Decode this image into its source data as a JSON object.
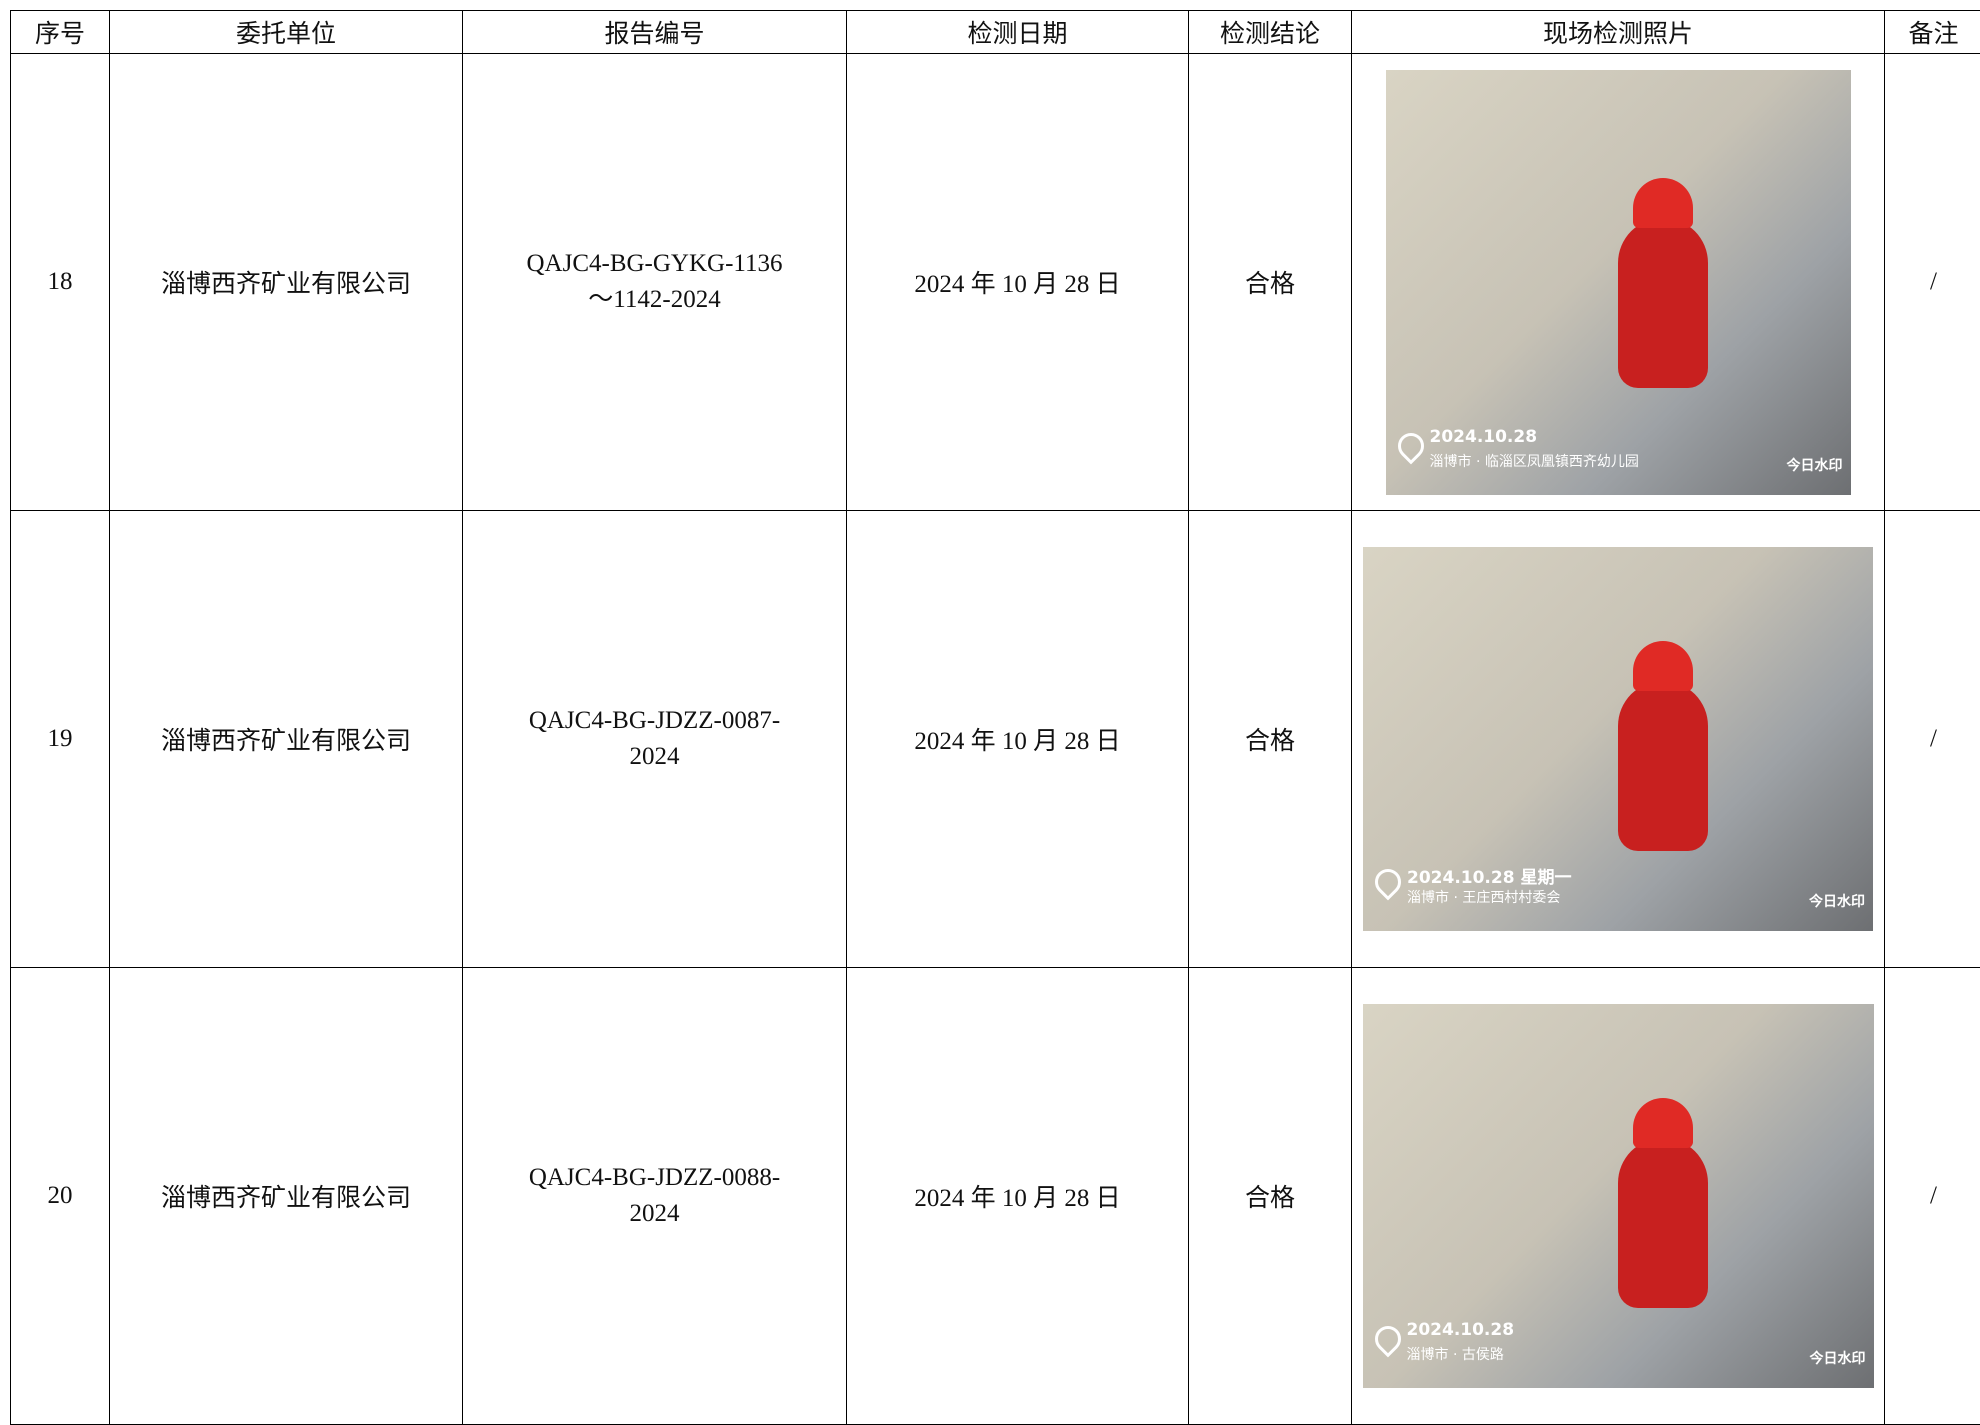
{
  "table": {
    "headers": [
      "序号",
      "委托单位",
      "报告编号",
      "检测日期",
      "检测结论",
      "现场检测照片",
      "备注"
    ],
    "rows": [
      {
        "no": "18",
        "client": "淄博西齐矿业有限公司",
        "report": "QAJC4-BG-GYKG-1136～1142-2024",
        "date": "2024 年 10 月 28 日",
        "conclusion": "合格",
        "photo": {
          "time": "2024.10.28",
          "location": "淄博市 · 临淄区凤凰镇西齐幼儿园",
          "brand": "今日水印"
        },
        "remark": "/"
      },
      {
        "no": "19",
        "client": "淄博西齐矿业有限公司",
        "report": "QAJC4-BG-JDZZ-0087-2024",
        "date": "2024 年 10 月 28 日",
        "conclusion": "合格",
        "photo": {
          "time": "2024.10.28 星期一",
          "location": "淄博市 · 王庄西村村委会",
          "brand": "今日水印"
        },
        "remark": "/"
      },
      {
        "no": "20",
        "client": "淄博西齐矿业有限公司",
        "report": "QAJC4-BG-JDZZ-0088-2024",
        "date": "2024 年 10 月 28 日",
        "conclusion": "合格",
        "photo": {
          "time": "2024.10.28",
          "location": "淄博市 · 古侯路",
          "brand": "今日水印"
        },
        "remark": "/"
      }
    ]
  }
}
